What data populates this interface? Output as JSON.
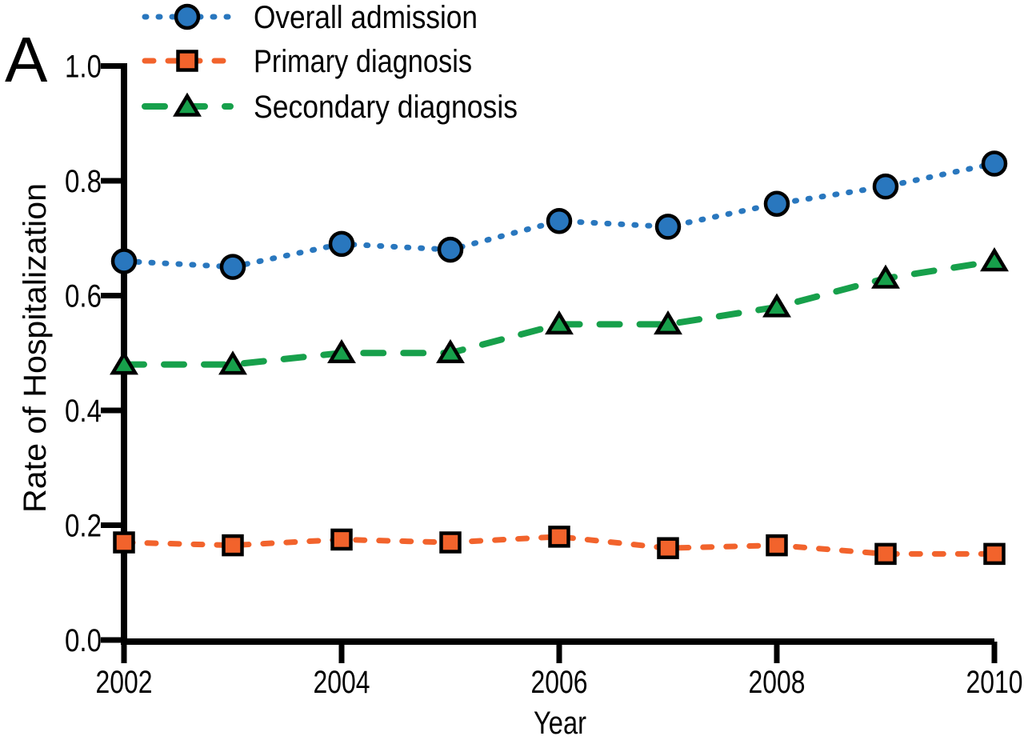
{
  "panel_label": "A",
  "chart_data": {
    "type": "line",
    "title": "",
    "xlabel": "Year",
    "ylabel": "Rate of Hospitalization",
    "x": [
      2002,
      2003,
      2004,
      2005,
      2006,
      2007,
      2008,
      2009,
      2010
    ],
    "xticks": [
      2002,
      2004,
      2006,
      2008,
      2010
    ],
    "yticks": [
      0.0,
      0.2,
      0.4,
      0.6,
      0.8,
      1.0
    ],
    "ylim": [
      0.0,
      1.0
    ],
    "xlim": [
      2002,
      2010
    ],
    "grid": false,
    "legend_position": "top-left",
    "axis_color": "#000000",
    "series": [
      {
        "name": "Overall admission",
        "marker": "circle",
        "line_style": "dotted",
        "color": "#2977BE",
        "values": [
          0.66,
          0.65,
          0.69,
          0.68,
          0.73,
          0.72,
          0.76,
          0.79,
          0.83
        ]
      },
      {
        "name": "Primary diagnosis",
        "marker": "square",
        "line_style": "dashed",
        "color": "#F2632C",
        "values": [
          0.17,
          0.165,
          0.175,
          0.17,
          0.18,
          0.16,
          0.165,
          0.15,
          0.15
        ]
      },
      {
        "name": "Secondary diagnosis",
        "marker": "triangle",
        "line_style": "long-dash",
        "color": "#17A04B",
        "values": [
          0.48,
          0.48,
          0.5,
          0.5,
          0.55,
          0.55,
          0.58,
          0.63,
          0.66
        ]
      }
    ]
  }
}
